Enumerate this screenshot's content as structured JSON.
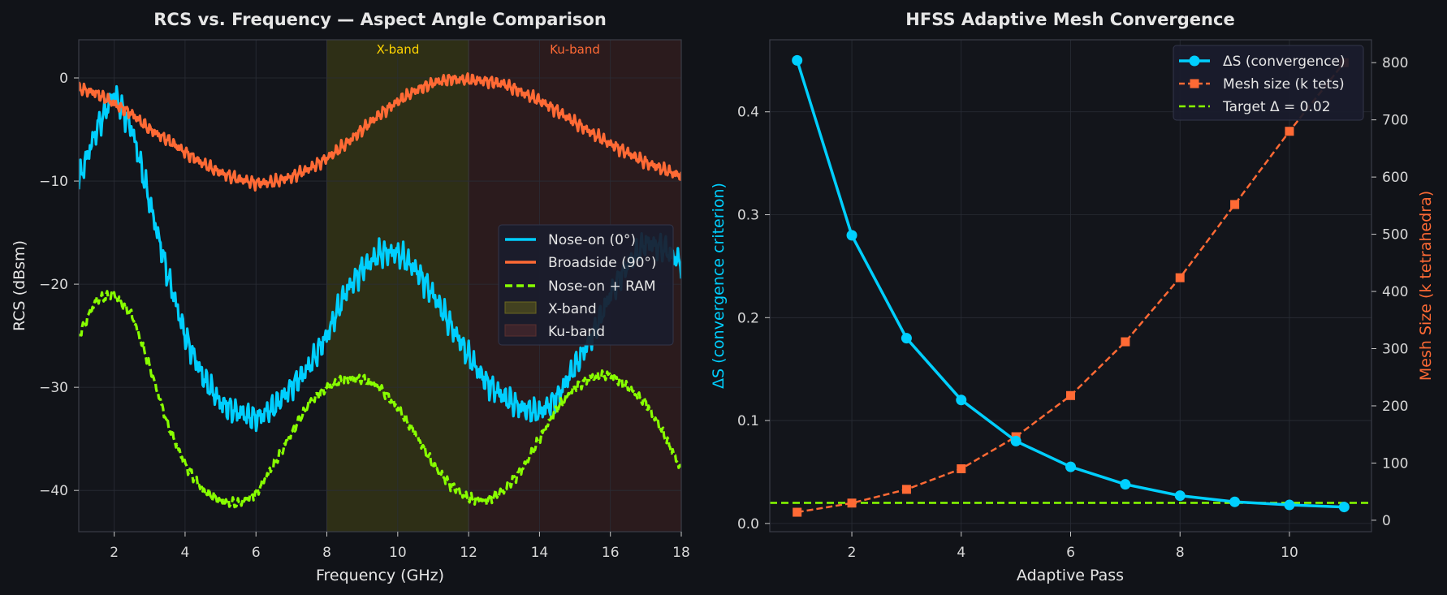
{
  "theme": {
    "background": "#111318",
    "axes_bg": "#13151b",
    "grid": "#2a2d36",
    "spine": "#3a3d47",
    "text": "#e6e6e6",
    "tick_text": "#d8d8d8",
    "cyan": "#00cfff",
    "orange": "#ff6a35",
    "lime": "#88ff00",
    "xband_fill": "#b8b000",
    "kuband_fill": "#ff5a30",
    "xband_label_color": "#ffd400",
    "kuband_label_color": "#ff6a35"
  },
  "chart_data": [
    {
      "type": "line",
      "title": "RCS vs. Frequency — Aspect Angle Comparison",
      "xlabel": "Frequency (GHz)",
      "ylabel": "RCS (dBsm)",
      "xlim": [
        1,
        18
      ],
      "ylim": [
        -44,
        3.7
      ],
      "xticks": [
        2,
        4,
        6,
        8,
        10,
        12,
        14,
        16,
        18
      ],
      "yticks": [
        0,
        -10,
        -20,
        -30,
        -40
      ],
      "ytick_labels": [
        "0",
        "−10",
        "−20",
        "−30",
        "−40"
      ],
      "grid": true,
      "legend_position": "center-right",
      "bands": [
        {
          "name": "X-band",
          "label": "X-band",
          "range": [
            8,
            12
          ],
          "color": "#b8b000"
        },
        {
          "name": "Ku-band",
          "label": "Ku-band",
          "range": [
            12,
            18
          ],
          "color": "#ff5a30"
        }
      ],
      "series": [
        {
          "name": "Nose-on (0°)",
          "color": "#00cfff",
          "style": "solid",
          "x": [
            1,
            1.5,
            2,
            2.5,
            3,
            3.5,
            4,
            4.5,
            5,
            5.5,
            6,
            6.5,
            7,
            7.5,
            8,
            8.5,
            9,
            9.5,
            10,
            10.5,
            11,
            11.5,
            12,
            12.5,
            13,
            13.5,
            14,
            14.5,
            15,
            15.5,
            16,
            16.5,
            17,
            17.5,
            18
          ],
          "y": [
            -10,
            -5,
            -1.5,
            -5,
            -12,
            -19,
            -25,
            -29,
            -31.5,
            -32.5,
            -33,
            -32,
            -30,
            -28,
            -25,
            -21,
            -18.5,
            -17,
            -17,
            -18.5,
            -21,
            -24,
            -27,
            -29.5,
            -31,
            -32,
            -32.5,
            -31,
            -28,
            -25,
            -21,
            -18,
            -16,
            -16.5,
            -18
          ]
        },
        {
          "name": "Broadside (90°)",
          "color": "#ff6a35",
          "style": "solid",
          "x": [
            1,
            1.5,
            2,
            2.5,
            3,
            3.5,
            4,
            4.5,
            5,
            5.5,
            6,
            6.5,
            7,
            7.5,
            8,
            8.5,
            9,
            9.5,
            10,
            10.5,
            11,
            11.5,
            12,
            12.5,
            13,
            13.5,
            14,
            14.5,
            15,
            15.5,
            16,
            16.5,
            17,
            17.5,
            18
          ],
          "y": [
            -1,
            -1.5,
            -2.5,
            -3.5,
            -5,
            -6,
            -7.2,
            -8.3,
            -9.2,
            -9.8,
            -10.2,
            -10.1,
            -9.6,
            -8.8,
            -7.8,
            -6.5,
            -5,
            -3.5,
            -2.3,
            -1.2,
            -0.5,
            -0.1,
            -0.2,
            -0.3,
            -0.6,
            -1.4,
            -2.2,
            -3.2,
            -4.3,
            -5.4,
            -6.4,
            -7.3,
            -8.2,
            -8.9,
            -9.5
          ]
        },
        {
          "name": "Nose-on + RAM",
          "color": "#88ff00",
          "style": "dashed",
          "x": [
            1,
            1.5,
            2,
            2.5,
            3,
            3.5,
            4,
            4.5,
            5,
            5.5,
            6,
            6.5,
            7,
            7.5,
            8,
            8.5,
            9,
            9.5,
            10,
            10.5,
            11,
            11.5,
            12,
            12.5,
            13,
            13.5,
            14,
            14.5,
            15,
            15.5,
            16,
            16.5,
            17,
            17.5,
            18
          ],
          "y": [
            -25,
            -21.5,
            -21,
            -23,
            -28,
            -33.5,
            -37.5,
            -40,
            -41,
            -41.3,
            -40.3,
            -37.5,
            -34.5,
            -31.5,
            -30,
            -29.2,
            -29.2,
            -30,
            -32,
            -34.5,
            -37.5,
            -39.5,
            -40.8,
            -41,
            -40,
            -38,
            -35,
            -32,
            -30,
            -29,
            -28.8,
            -30,
            -31.5,
            -34.5,
            -38
          ]
        },
        {
          "name": "X-band",
          "type": "band",
          "color": "#b8b000"
        },
        {
          "name": "Ku-band",
          "type": "band",
          "color": "#ff5a30"
        }
      ]
    },
    {
      "type": "line",
      "title": "HFSS Adaptive Mesh Convergence",
      "xlabel": "Adaptive Pass",
      "ylabel": "ΔS (convergence criterion)",
      "y2label": "Mesh Size (k tetrahedra)",
      "xlim": [
        0.5,
        11.5
      ],
      "ylim": [
        -0.008,
        0.47
      ],
      "y2lim": [
        -20,
        840
      ],
      "xticks": [
        2,
        4,
        6,
        8,
        10
      ],
      "yticks": [
        0.0,
        0.1,
        0.2,
        0.3,
        0.4
      ],
      "y2ticks": [
        0,
        100,
        200,
        300,
        400,
        500,
        600,
        700,
        800
      ],
      "grid": true,
      "legend_position": "top-right",
      "series": [
        {
          "name": "ΔS (convergence)",
          "color": "#00cfff",
          "style": "solid",
          "marker": "circle",
          "axis": "left",
          "x": [
            1,
            2,
            3,
            4,
            5,
            6,
            7,
            8,
            9,
            10,
            11
          ],
          "y": [
            0.45,
            0.28,
            0.18,
            0.12,
            0.08,
            0.055,
            0.038,
            0.027,
            0.021,
            0.018,
            0.016
          ]
        },
        {
          "name": "Mesh size (k tets)",
          "color": "#ff6a35",
          "style": "dashed",
          "marker": "square",
          "axis": "right",
          "x": [
            1,
            2,
            3,
            4,
            5,
            6,
            7,
            8,
            9,
            10,
            11
          ],
          "y": [
            14,
            30,
            54,
            90,
            146,
            218,
            312,
            424,
            552,
            680,
            800
          ]
        },
        {
          "name": "Target Δ = 0.02",
          "color": "#88ff00",
          "style": "dashed",
          "axis": "left",
          "x": [
            0.5,
            11.5
          ],
          "y": [
            0.02,
            0.02
          ]
        }
      ]
    }
  ]
}
